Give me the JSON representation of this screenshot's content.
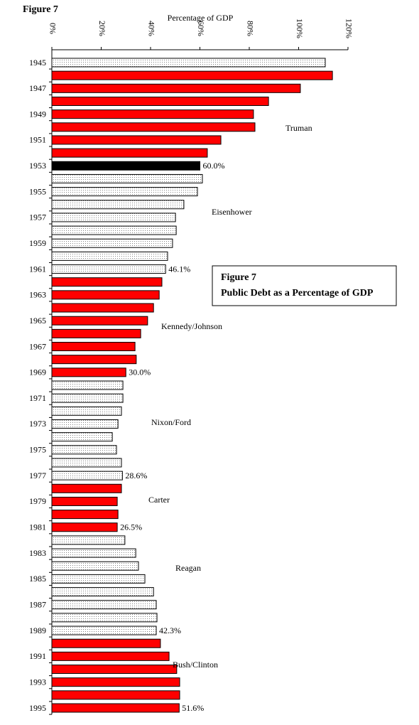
{
  "chart_data": {
    "type": "bar",
    "orientation": "horizontal",
    "figure_label": "Figure 7",
    "title": "Public Debt as a Percentage of GDP",
    "x_label": "Percentage of GDP",
    "categories": [
      "1945",
      null,
      "1947",
      null,
      "1949",
      null,
      "1951",
      null,
      "1953",
      null,
      "1955",
      null,
      "1957",
      null,
      "1959",
      null,
      "1961",
      null,
      "1963",
      null,
      "1965",
      null,
      "1967",
      null,
      "1969",
      null,
      "1971",
      null,
      "1973",
      null,
      "1975",
      null,
      "1977",
      null,
      "1979",
      null,
      "1981",
      null,
      "1983",
      null,
      "1985",
      null,
      "1987",
      null,
      "1989",
      null,
      "1991",
      null,
      "1993",
      null,
      "1995"
    ],
    "values": [
      110.8,
      113.7,
      100.7,
      87.8,
      81.7,
      82.3,
      68.5,
      63.0,
      60.0,
      61.0,
      59.0,
      53.5,
      50.1,
      50.4,
      48.9,
      46.9,
      46.1,
      44.6,
      43.5,
      41.2,
      38.8,
      36.0,
      33.7,
      34.2,
      30.0,
      28.8,
      28.8,
      28.2,
      26.8,
      24.5,
      26.2,
      28.2,
      28.6,
      28.2,
      26.5,
      26.8,
      26.5,
      29.6,
      34.0,
      35.1,
      37.7,
      41.2,
      42.3,
      42.6,
      42.3,
      44.0,
      47.5,
      50.6,
      51.8,
      51.8,
      51.6
    ],
    "value_labels": [
      null,
      null,
      null,
      null,
      null,
      null,
      null,
      null,
      "60.0%",
      null,
      null,
      null,
      null,
      null,
      null,
      null,
      "46.1%",
      null,
      null,
      null,
      null,
      null,
      null,
      null,
      "30.0%",
      null,
      null,
      null,
      null,
      null,
      null,
      null,
      "28.6%",
      null,
      null,
      null,
      "26.5%",
      null,
      null,
      null,
      null,
      null,
      null,
      null,
      "42.3%",
      null,
      null,
      null,
      null,
      null,
      "51.6%"
    ],
    "colors": [
      "#ffffff",
      "#ff0000",
      "#ff0000",
      "#ff0000",
      "#ff0000",
      "#ff0000",
      "#ff0000",
      "#ff0000",
      "#000000",
      "#ffffff",
      "#ffffff",
      "#ffffff",
      "#ffffff",
      "#ffffff",
      "#ffffff",
      "#ffffff",
      "#ffffff",
      "#ff0000",
      "#ff0000",
      "#ff0000",
      "#ff0000",
      "#ff0000",
      "#ff0000",
      "#ff0000",
      "#ff0000",
      "#ffffff",
      "#ffffff",
      "#ffffff",
      "#ffffff",
      "#ffffff",
      "#ffffff",
      "#ffffff",
      "#ffffff",
      "#ff0000",
      "#ff0000",
      "#ff0000",
      "#ff0000",
      "#ffffff",
      "#ffffff",
      "#ffffff",
      "#ffffff",
      "#ffffff",
      "#ffffff",
      "#ffffff",
      "#ffffff",
      "#ff0000",
      "#ff0000",
      "#ff0000",
      "#ff0000",
      "#ff0000",
      "#ff0000"
    ],
    "stippled": [
      true,
      false,
      false,
      false,
      false,
      false,
      false,
      false,
      false,
      true,
      true,
      true,
      true,
      true,
      true,
      true,
      true,
      false,
      false,
      false,
      false,
      false,
      false,
      false,
      false,
      true,
      true,
      true,
      true,
      true,
      true,
      true,
      true,
      false,
      false,
      false,
      false,
      true,
      true,
      true,
      true,
      true,
      true,
      true,
      true,
      false,
      false,
      false,
      false,
      false,
      false
    ],
    "xlim": [
      0,
      120
    ],
    "xticks": [
      {
        "value": 0,
        "label": "0%"
      },
      {
        "value": 20,
        "label": "20%"
      },
      {
        "value": 40,
        "label": "40%"
      },
      {
        "value": 60,
        "label": "60%"
      },
      {
        "value": 80,
        "label": "80%"
      },
      {
        "value": 100,
        "label": "100%"
      },
      {
        "value": 120,
        "label": "120%"
      }
    ],
    "annotations": [
      "Truman",
      "Eisenhower",
      "Kennedy/Johnson",
      "Nixon/Ford",
      "Carter",
      "Reagan",
      "Bush/Clinton"
    ]
  }
}
